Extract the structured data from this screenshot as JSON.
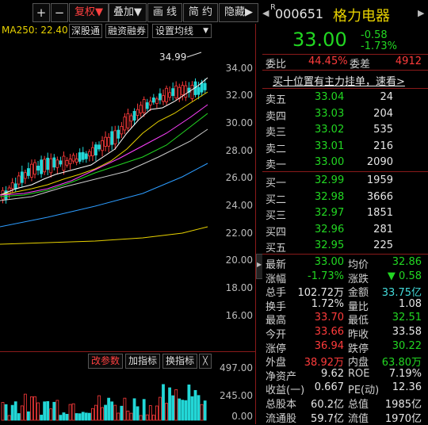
{
  "toolbar": {
    "plus": "+",
    "minus": "−",
    "fuquan": "复权▼",
    "diejia": "叠加▼",
    "huaxian": "画 线",
    "jianyue": "简 约",
    "yincang": "隐藏▶"
  },
  "ma_bar": {
    "ma250": "MA250: 22.40",
    "deep": "深股通",
    "margin": "融资融券",
    "set_ma": "设置均线"
  },
  "chart": {
    "peak_label": "34.99",
    "price_ticks": [
      "34.00",
      "32.00",
      "30.00",
      "28.00",
      "26.00",
      "24.00",
      "22.00",
      "20.00",
      "18.00",
      "16.00"
    ],
    "vol_ticks": [
      "497.00",
      "245.00",
      "0.00"
    ],
    "vol_buttons": {
      "params": "改参数",
      "add": "加指标",
      "switch": "换指标",
      "close": "╳"
    }
  },
  "header": {
    "r_mark": "R",
    "code": "000651",
    "name": "格力电器",
    "price": "33.00",
    "change": "-0.58",
    "change_pct": "-1.73%"
  },
  "ratio": {
    "weibi_label": "委比",
    "weibi_value": "44.45%",
    "weicha_label": "委差",
    "weicha_value": "4912"
  },
  "promo": "买十位置有主力挂单，速看>",
  "sell": [
    {
      "label": "卖五",
      "price": "33.04",
      "vol": "24"
    },
    {
      "label": "卖四",
      "price": "33.03",
      "vol": "204"
    },
    {
      "label": "卖三",
      "price": "33.02",
      "vol": "535"
    },
    {
      "label": "卖二",
      "price": "33.01",
      "vol": "216"
    },
    {
      "label": "卖一",
      "price": "33.00",
      "vol": "2090"
    }
  ],
  "buy": [
    {
      "label": "买一",
      "price": "32.99",
      "vol": "1959"
    },
    {
      "label": "买二",
      "price": "32.98",
      "vol": "3666"
    },
    {
      "label": "买三",
      "price": "32.97",
      "vol": "1851"
    },
    {
      "label": "买四",
      "price": "32.96",
      "vol": "281"
    },
    {
      "label": "买五",
      "price": "32.95",
      "vol": "225"
    }
  ],
  "stats": [
    {
      "l1": "最新",
      "v1": "33.00",
      "c1": "green",
      "l2": "均价",
      "v2": "32.86",
      "c2": "green"
    },
    {
      "l1": "涨幅",
      "v1": "-1.73%",
      "c1": "green",
      "l2": "涨跌",
      "v2": "▼ 0.58",
      "c2": "green"
    },
    {
      "l1": "总手",
      "v1": "102.72万",
      "c1": "white",
      "l2": "金额",
      "v2": "33.75亿",
      "c2": "cyan"
    },
    {
      "l1": "换手",
      "v1": "1.72%",
      "c1": "white",
      "l2": "量比",
      "v2": "1.08",
      "c2": "white"
    },
    {
      "l1": "最高",
      "v1": "33.70",
      "c1": "red",
      "l2": "最低",
      "v2": "32.51",
      "c2": "green"
    },
    {
      "l1": "今开",
      "v1": "33.66",
      "c1": "red",
      "l2": "昨收",
      "v2": "33.58",
      "c2": "white"
    },
    {
      "l1": "涨停",
      "v1": "36.94",
      "c1": "red",
      "l2": "跌停",
      "v2": "30.22",
      "c2": "green"
    },
    {
      "l1": "外盘",
      "v1": "38.92万",
      "c1": "red",
      "l2": "内盘",
      "v2": "63.80万",
      "c2": "green"
    },
    {
      "l1": "净资产",
      "v1": "9.62",
      "c1": "white",
      "l2": "ROE",
      "v2": "7.19%",
      "c2": "white"
    },
    {
      "l1": "收益(一)",
      "v1": "0.667",
      "c1": "white",
      "l2": "PE(动)",
      "v2": "12.36",
      "c2": "white"
    },
    {
      "l1": "总股本",
      "v1": "60.2亿",
      "c1": "white",
      "l2": "总值",
      "v2": "1985亿",
      "c2": "white"
    },
    {
      "l1": "流通股",
      "v1": "59.7亿",
      "c1": "white",
      "l2": "流值",
      "v2": "1970亿",
      "c2": "white"
    }
  ]
}
